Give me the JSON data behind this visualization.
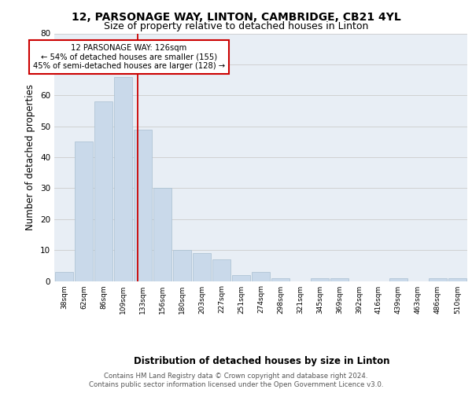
{
  "title1": "12, PARSONAGE WAY, LINTON, CAMBRIDGE, CB21 4YL",
  "title2": "Size of property relative to detached houses in Linton",
  "xlabel": "Distribution of detached houses by size in Linton",
  "ylabel": "Number of detached properties",
  "footer1": "Contains HM Land Registry data © Crown copyright and database right 2024.",
  "footer2": "Contains public sector information licensed under the Open Government Licence v3.0.",
  "bar_labels": [
    "38sqm",
    "62sqm",
    "86sqm",
    "109sqm",
    "133sqm",
    "156sqm",
    "180sqm",
    "203sqm",
    "227sqm",
    "251sqm",
    "274sqm",
    "298sqm",
    "321sqm",
    "345sqm",
    "369sqm",
    "392sqm",
    "416sqm",
    "439sqm",
    "463sqm",
    "486sqm",
    "510sqm"
  ],
  "bar_values": [
    3,
    45,
    58,
    66,
    49,
    30,
    10,
    9,
    7,
    2,
    3,
    1,
    0,
    1,
    1,
    0,
    0,
    1,
    0,
    1,
    1
  ],
  "bar_color": "#c9d9ea",
  "bar_edgecolor": "#a8bfd0",
  "vline_color": "#cc0000",
  "annotation_text": "12 PARSONAGE WAY: 126sqm\n← 54% of detached houses are smaller (155)\n45% of semi-detached houses are larger (128) →",
  "annotation_box_color": "#ffffff",
  "annotation_box_edgecolor": "#cc0000",
  "ylim": [
    0,
    80
  ],
  "yticks": [
    0,
    10,
    20,
    30,
    40,
    50,
    60,
    70,
    80
  ],
  "grid_color": "#cccccc",
  "bg_color": "#e8eef5",
  "title1_fontsize": 10,
  "title2_fontsize": 9,
  "xlabel_fontsize": 8.5,
  "ylabel_fontsize": 8.5,
  "footer_fontsize": 6.2
}
